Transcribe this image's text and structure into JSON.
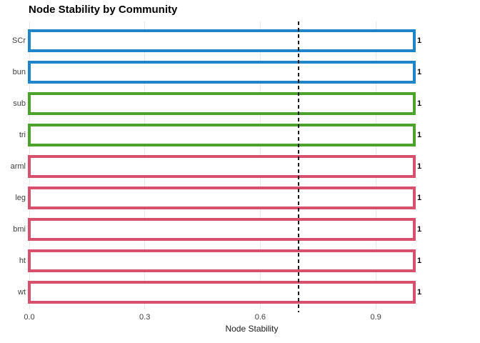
{
  "title": "Node Stability by Community",
  "chart_data": {
    "type": "bar",
    "orientation": "horizontal",
    "title": "Node Stability by Community",
    "xlabel": "Node Stability",
    "ylabel": "",
    "categories": [
      "SCr",
      "bun",
      "sub",
      "tri",
      "arml",
      "leg",
      "bmi",
      "ht",
      "wt"
    ],
    "values": [
      1,
      1,
      1,
      1,
      1,
      1,
      1,
      1,
      1
    ],
    "bar_labels": [
      "1",
      "1",
      "1",
      "1",
      "1",
      "1",
      "1",
      "1",
      "1"
    ],
    "bar_colors": [
      "#1e86c8",
      "#1e86c8",
      "#4ca32c",
      "#4ca32c",
      "#d9506e",
      "#d9506e",
      "#d9506e",
      "#d9506e",
      "#d9506e"
    ],
    "communities": [
      {
        "color": "#1e86c8",
        "members": [
          "SCr",
          "bun"
        ]
      },
      {
        "color": "#4ca32c",
        "members": [
          "sub",
          "tri"
        ]
      },
      {
        "color": "#d9506e",
        "members": [
          "arml",
          "leg",
          "bmi",
          "ht",
          "wt"
        ]
      }
    ],
    "bar_fill": "#ffffff",
    "x_ticks": [
      0.0,
      0.3,
      0.6,
      0.9
    ],
    "x_tick_labels": [
      "0.0",
      "0.3",
      "0.6",
      "0.9"
    ],
    "xlim": [
      0,
      1.16
    ],
    "threshold_line": {
      "x": 0.7,
      "style": "dashed",
      "color": "#1a1a1a"
    },
    "grid": "vertical-major",
    "grid_color": "#e8e8e8",
    "legend": "none",
    "background": "#ffffff"
  }
}
